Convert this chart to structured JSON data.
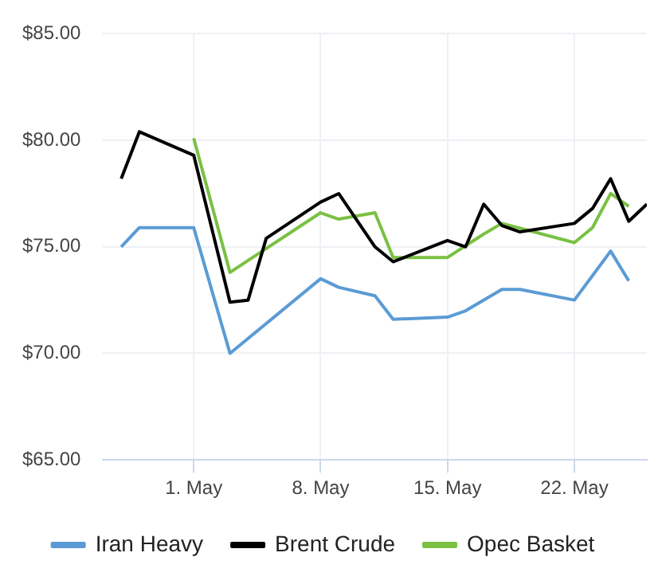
{
  "chart_data": {
    "type": "line",
    "x": [
      "--04-27",
      "--04-28",
      "--05-01",
      "--05-03",
      "--05-04",
      "--05-05",
      "--05-08",
      "--05-09",
      "--05-11",
      "--05-12",
      "--05-15",
      "--05-16",
      "--05-17",
      "--05-18",
      "--05-19",
      "--05-22",
      "--05-23",
      "--05-24",
      "--05-25",
      "--05-26"
    ],
    "series": [
      {
        "name": "Iran Heavy",
        "color": "#5b9bd5",
        "values": [
          75.0,
          75.9,
          75.9,
          70.0,
          null,
          null,
          73.5,
          73.1,
          72.7,
          71.6,
          71.7,
          72.0,
          null,
          73.0,
          73.0,
          72.5,
          null,
          74.8,
          73.4,
          null
        ]
      },
      {
        "name": "Brent Crude",
        "color": "#000000",
        "values": [
          78.2,
          80.4,
          79.3,
          72.4,
          72.5,
          75.4,
          77.1,
          77.5,
          75.0,
          74.3,
          75.3,
          75.0,
          77.0,
          76.0,
          75.7,
          76.1,
          76.8,
          78.2,
          76.2,
          77.0
        ]
      },
      {
        "name": "Opec Basket",
        "color": "#7ac143",
        "values": [
          null,
          null,
          80.1,
          73.8,
          null,
          null,
          76.6,
          76.3,
          76.6,
          74.5,
          74.5,
          null,
          75.6,
          76.1,
          null,
          75.2,
          75.9,
          77.5,
          76.9,
          null
        ]
      }
    ],
    "xlim": [
      "--04-26",
      "--05-26"
    ],
    "xticks": [
      {
        "value": "--05-01",
        "label": "1. May"
      },
      {
        "value": "--05-08",
        "label": "8. May"
      },
      {
        "value": "--05-15",
        "label": "15. May"
      },
      {
        "value": "--05-22",
        "label": "22. May"
      }
    ],
    "ylim": [
      65,
      85
    ],
    "yticks": [
      {
        "value": 65,
        "label": "$65.00"
      },
      {
        "value": 70,
        "label": "$70.00"
      },
      {
        "value": 75,
        "label": "$75.00"
      },
      {
        "value": 80,
        "label": "$80.00"
      },
      {
        "value": 85,
        "label": "$85.00"
      }
    ],
    "grid": true,
    "legend": "bottom",
    "marker": "none",
    "line_style": "solid"
  }
}
